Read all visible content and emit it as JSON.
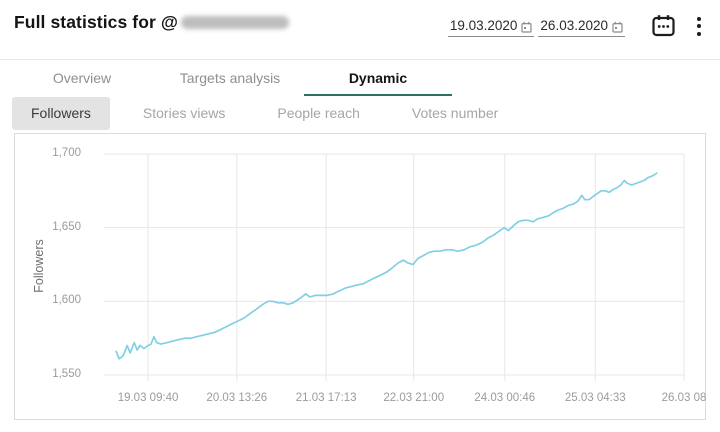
{
  "header": {
    "title_prefix": "Full statistics for @",
    "username_redacted": true,
    "date_from": "19.03.2020",
    "date_to": "26.03.2020"
  },
  "tabs": [
    {
      "label": "Overview",
      "active": false
    },
    {
      "label": "Targets analysis",
      "active": false
    },
    {
      "label": "Dynamic",
      "active": true
    }
  ],
  "subtabs": [
    {
      "label": "Followers",
      "active": true
    },
    {
      "label": "Stories views",
      "active": false
    },
    {
      "label": "People reach",
      "active": false
    },
    {
      "label": "Votes number",
      "active": false
    }
  ],
  "colors": {
    "accent_teal": "#2b7164",
    "line_blue": "#82cfe5",
    "grid": "#e7e7e7",
    "tick_text": "#9b9b9b",
    "panel_border": "#dcdcdc",
    "active_subtab_bg": "#e3e3e3"
  },
  "chart_data": {
    "type": "line",
    "title": "",
    "xlabel": "",
    "ylabel": "Followers",
    "y_min": 1550,
    "y_max": 1700,
    "grid": true,
    "legend": "none",
    "y_ticks": [
      {
        "label": "1,700",
        "value": 1700
      },
      {
        "label": "1,650",
        "value": 1650
      },
      {
        "label": "1,600",
        "value": 1600
      },
      {
        "label": "1,550",
        "value": 1550
      }
    ],
    "x_ticks": [
      {
        "label": "19.03 09:40",
        "f": 0.076
      },
      {
        "label": "20.03 13:26",
        "f": 0.229
      },
      {
        "label": "21.03 17:13",
        "f": 0.383
      },
      {
        "label": "22.03 21:00",
        "f": 0.534
      },
      {
        "label": "24.03 00:46",
        "f": 0.691
      },
      {
        "label": "25.03 04:33",
        "f": 0.847
      },
      {
        "label": "26.03 08",
        "f": 1.0
      }
    ],
    "series": [
      {
        "name": "Followers",
        "color": "#82cfe5",
        "points": [
          [
            0.021,
            1566
          ],
          [
            0.026,
            1561
          ],
          [
            0.033,
            1563
          ],
          [
            0.04,
            1570
          ],
          [
            0.045,
            1565
          ],
          [
            0.052,
            1572
          ],
          [
            0.057,
            1567
          ],
          [
            0.062,
            1570
          ],
          [
            0.069,
            1568
          ],
          [
            0.076,
            1570
          ],
          [
            0.081,
            1571
          ],
          [
            0.086,
            1576
          ],
          [
            0.091,
            1572
          ],
          [
            0.098,
            1571
          ],
          [
            0.109,
            1572
          ],
          [
            0.119,
            1573
          ],
          [
            0.129,
            1574
          ],
          [
            0.14,
            1575
          ],
          [
            0.15,
            1575
          ],
          [
            0.16,
            1576
          ],
          [
            0.171,
            1577
          ],
          [
            0.181,
            1578
          ],
          [
            0.191,
            1579
          ],
          [
            0.202,
            1581
          ],
          [
            0.212,
            1583
          ],
          [
            0.222,
            1585
          ],
          [
            0.233,
            1587
          ],
          [
            0.243,
            1589
          ],
          [
            0.253,
            1592
          ],
          [
            0.264,
            1595
          ],
          [
            0.274,
            1598
          ],
          [
            0.283,
            1600
          ],
          [
            0.291,
            1600
          ],
          [
            0.3,
            1599
          ],
          [
            0.309,
            1599
          ],
          [
            0.317,
            1598
          ],
          [
            0.326,
            1599
          ],
          [
            0.334,
            1601
          ],
          [
            0.341,
            1603
          ],
          [
            0.348,
            1605
          ],
          [
            0.355,
            1603
          ],
          [
            0.364,
            1604
          ],
          [
            0.374,
            1604
          ],
          [
            0.384,
            1604
          ],
          [
            0.395,
            1605
          ],
          [
            0.405,
            1607
          ],
          [
            0.416,
            1609
          ],
          [
            0.426,
            1610
          ],
          [
            0.436,
            1611
          ],
          [
            0.447,
            1612
          ],
          [
            0.457,
            1614
          ],
          [
            0.467,
            1616
          ],
          [
            0.478,
            1618
          ],
          [
            0.488,
            1620
          ],
          [
            0.498,
            1623
          ],
          [
            0.507,
            1626
          ],
          [
            0.516,
            1628
          ],
          [
            0.524,
            1626
          ],
          [
            0.533,
            1625
          ],
          [
            0.541,
            1629
          ],
          [
            0.55,
            1631
          ],
          [
            0.559,
            1633
          ],
          [
            0.569,
            1634
          ],
          [
            0.579,
            1634
          ],
          [
            0.59,
            1635
          ],
          [
            0.6,
            1635
          ],
          [
            0.61,
            1634
          ],
          [
            0.621,
            1635
          ],
          [
            0.631,
            1637
          ],
          [
            0.641,
            1638
          ],
          [
            0.652,
            1640
          ],
          [
            0.662,
            1643
          ],
          [
            0.672,
            1645
          ],
          [
            0.683,
            1648
          ],
          [
            0.69,
            1650
          ],
          [
            0.697,
            1648
          ],
          [
            0.705,
            1651
          ],
          [
            0.714,
            1654
          ],
          [
            0.722,
            1655
          ],
          [
            0.731,
            1655
          ],
          [
            0.74,
            1654
          ],
          [
            0.748,
            1656
          ],
          [
            0.757,
            1657
          ],
          [
            0.766,
            1658
          ],
          [
            0.774,
            1660
          ],
          [
            0.783,
            1662
          ],
          [
            0.791,
            1663
          ],
          [
            0.8,
            1665
          ],
          [
            0.809,
            1666
          ],
          [
            0.817,
            1668
          ],
          [
            0.824,
            1672
          ],
          [
            0.829,
            1669
          ],
          [
            0.836,
            1669
          ],
          [
            0.843,
            1671
          ],
          [
            0.85,
            1673
          ],
          [
            0.857,
            1675
          ],
          [
            0.864,
            1675
          ],
          [
            0.871,
            1674
          ],
          [
            0.878,
            1676
          ],
          [
            0.884,
            1677
          ],
          [
            0.891,
            1679
          ],
          [
            0.897,
            1682
          ],
          [
            0.903,
            1680
          ],
          [
            0.91,
            1679
          ],
          [
            0.917,
            1680
          ],
          [
            0.924,
            1681
          ],
          [
            0.931,
            1682
          ],
          [
            0.938,
            1684
          ],
          [
            0.945,
            1685
          ],
          [
            0.953,
            1687
          ]
        ]
      }
    ]
  }
}
